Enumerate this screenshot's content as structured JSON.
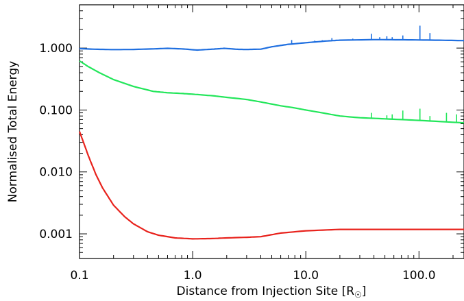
{
  "chart_data": {
    "type": "line",
    "xlabel": "Distance from Injection Site [R",
    "xlabel_unit_symbol": "☉",
    "xlabel_close": "]",
    "ylabel": "Normalised Total Energy",
    "xscale": "log",
    "yscale": "log",
    "xlim": [
      0.1,
      250
    ],
    "ylim": [
      0.0004,
      5
    ],
    "grid": false,
    "x_ticks": [
      0.1,
      1.0,
      10.0,
      100.0
    ],
    "x_tick_labels": [
      "0.1",
      "1.0",
      "10.0",
      "100.0"
    ],
    "y_ticks": [
      0.001,
      0.01,
      0.1,
      1.0
    ],
    "y_tick_labels": [
      "0.001",
      "0.010",
      "0.100",
      "1.000"
    ],
    "series": [
      {
        "color": "#1f6fe0",
        "points": [
          [
            0.1,
            0.98
          ],
          [
            0.13,
            0.96
          ],
          [
            0.2,
            0.945
          ],
          [
            0.3,
            0.95
          ],
          [
            0.45,
            0.97
          ],
          [
            0.6,
            0.99
          ],
          [
            0.8,
            0.97
          ],
          [
            1.1,
            0.93
          ],
          [
            1.5,
            0.96
          ],
          [
            1.9,
            0.99
          ],
          [
            2.5,
            0.955
          ],
          [
            3.0,
            0.95
          ],
          [
            4.0,
            0.96
          ],
          [
            5.0,
            1.05
          ],
          [
            7.0,
            1.15
          ],
          [
            10.0,
            1.22
          ],
          [
            15.0,
            1.3
          ],
          [
            20.0,
            1.34
          ],
          [
            40.0,
            1.37
          ],
          [
            80.0,
            1.36
          ],
          [
            150.0,
            1.34
          ],
          [
            250.0,
            1.32
          ]
        ],
        "spikes": [
          [
            7.5,
            1.35
          ],
          [
            12.0,
            1.32
          ],
          [
            14.0,
            1.34
          ],
          [
            17.0,
            1.45
          ],
          [
            26.0,
            1.42
          ],
          [
            38.0,
            1.7
          ],
          [
            45.0,
            1.5
          ],
          [
            52.0,
            1.55
          ],
          [
            58.0,
            1.5
          ],
          [
            72.0,
            1.6
          ],
          [
            102.0,
            2.3
          ],
          [
            125.0,
            1.75
          ]
        ]
      },
      {
        "color": "#22e65a",
        "points": [
          [
            0.1,
            0.62
          ],
          [
            0.12,
            0.5
          ],
          [
            0.15,
            0.4
          ],
          [
            0.2,
            0.31
          ],
          [
            0.3,
            0.24
          ],
          [
            0.45,
            0.2
          ],
          [
            0.6,
            0.19
          ],
          [
            0.8,
            0.185
          ],
          [
            1.0,
            0.18
          ],
          [
            1.5,
            0.17
          ],
          [
            2.0,
            0.16
          ],
          [
            3.0,
            0.148
          ],
          [
            4.0,
            0.135
          ],
          [
            6.0,
            0.117
          ],
          [
            8.0,
            0.108
          ],
          [
            10.0,
            0.1
          ],
          [
            15.0,
            0.088
          ],
          [
            20.0,
            0.08
          ],
          [
            30.0,
            0.075
          ],
          [
            50.0,
            0.072
          ],
          [
            100.0,
            0.068
          ],
          [
            250.0,
            0.062
          ]
        ],
        "spikes": [
          [
            38.0,
            0.09
          ],
          [
            52.0,
            0.082
          ],
          [
            58.0,
            0.085
          ],
          [
            72.0,
            0.098
          ],
          [
            102.0,
            0.105
          ],
          [
            125.0,
            0.08
          ],
          [
            175.0,
            0.09
          ],
          [
            215.0,
            0.085
          ]
        ]
      },
      {
        "color": "#e8221c",
        "points": [
          [
            0.1,
            0.045
          ],
          [
            0.11,
            0.028
          ],
          [
            0.12,
            0.018
          ],
          [
            0.14,
            0.009
          ],
          [
            0.16,
            0.0055
          ],
          [
            0.2,
            0.0029
          ],
          [
            0.25,
            0.0019
          ],
          [
            0.3,
            0.00145
          ],
          [
            0.4,
            0.00108
          ],
          [
            0.5,
            0.00095
          ],
          [
            0.7,
            0.00086
          ],
          [
            1.0,
            0.00083
          ],
          [
            1.5,
            0.00084
          ],
          [
            2.0,
            0.00086
          ],
          [
            3.0,
            0.00088
          ],
          [
            4.0,
            0.0009
          ],
          [
            6.0,
            0.00103
          ],
          [
            10.0,
            0.00112
          ],
          [
            20.0,
            0.00118
          ],
          [
            50.0,
            0.00118
          ],
          [
            100.0,
            0.00118
          ],
          [
            250.0,
            0.00118
          ]
        ],
        "spikes": []
      }
    ]
  }
}
